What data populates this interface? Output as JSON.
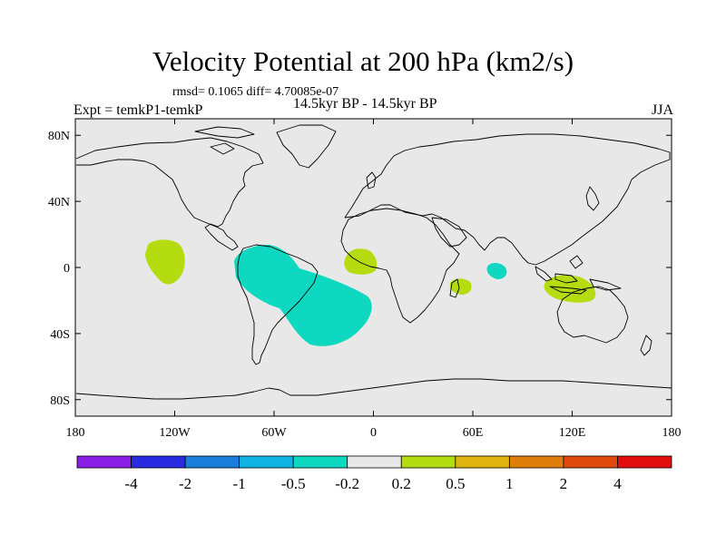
{
  "title": "Velocity Potential at 200 hPa (km2/s)",
  "stats": "rmsd= 0.1065 diff= 4.70085e-07",
  "left_label": "Expt = temkP1-temkP",
  "center_label": "14.5kyr BP - 14.5kyr BP",
  "right_label": "JJA",
  "chart_data": {
    "type": "heatmap",
    "projection": "cylindrical-equidistant",
    "variable": "velocity potential at 200 hPa",
    "units": "km2/s",
    "lon_range": [
      -180,
      180
    ],
    "lat_range": [
      -90,
      90
    ],
    "x_ticks": [
      {
        "value": -180,
        "label": "180"
      },
      {
        "value": -120,
        "label": "120W"
      },
      {
        "value": -60,
        "label": "60W"
      },
      {
        "value": 0,
        "label": "0"
      },
      {
        "value": 60,
        "label": "60E"
      },
      {
        "value": 120,
        "label": "120E"
      },
      {
        "value": 180,
        "label": "180"
      }
    ],
    "y_ticks": [
      {
        "value": 80,
        "label": "80N"
      },
      {
        "value": 40,
        "label": "40N"
      },
      {
        "value": 0,
        "label": "0"
      },
      {
        "value": -40,
        "label": "40S"
      },
      {
        "value": -80,
        "label": "80S"
      }
    ],
    "colorbar": {
      "colors": [
        "#8a1ee6",
        "#2a2ae0",
        "#1a7fdc",
        "#10b4e4",
        "#0ed8c0",
        "#e8e8e8",
        "#b4dc10",
        "#e0b40e",
        "#e07e0c",
        "#e04a0c",
        "#e00e0e"
      ],
      "labels": [
        "-4",
        "-2",
        "-1",
        "-0.5",
        "-0.2",
        "0.2",
        "0.5",
        "1",
        "2",
        "4"
      ]
    },
    "regions": [
      {
        "name": "central-pacific-positive",
        "bin": "0.2 to 0.5",
        "lon": -125,
        "lat": 4
      },
      {
        "name": "south-america-atlantic-negative",
        "bin": "-0.5 to -0.2",
        "lon": -45,
        "lat": -20
      },
      {
        "name": "west-africa-positive",
        "bin": "0.2 to 0.5",
        "lon": -8,
        "lat": 5
      },
      {
        "name": "madagascar-positive",
        "bin": "0.2 to 0.5",
        "lon": 50,
        "lat": -11
      },
      {
        "name": "indian-ocean-negative",
        "bin": "-0.5 to -0.2",
        "lon": 73,
        "lat": -1
      },
      {
        "name": "maritime-continent-positive",
        "bin": "0.2 to 0.5",
        "lon": 118,
        "lat": -13
      }
    ]
  }
}
